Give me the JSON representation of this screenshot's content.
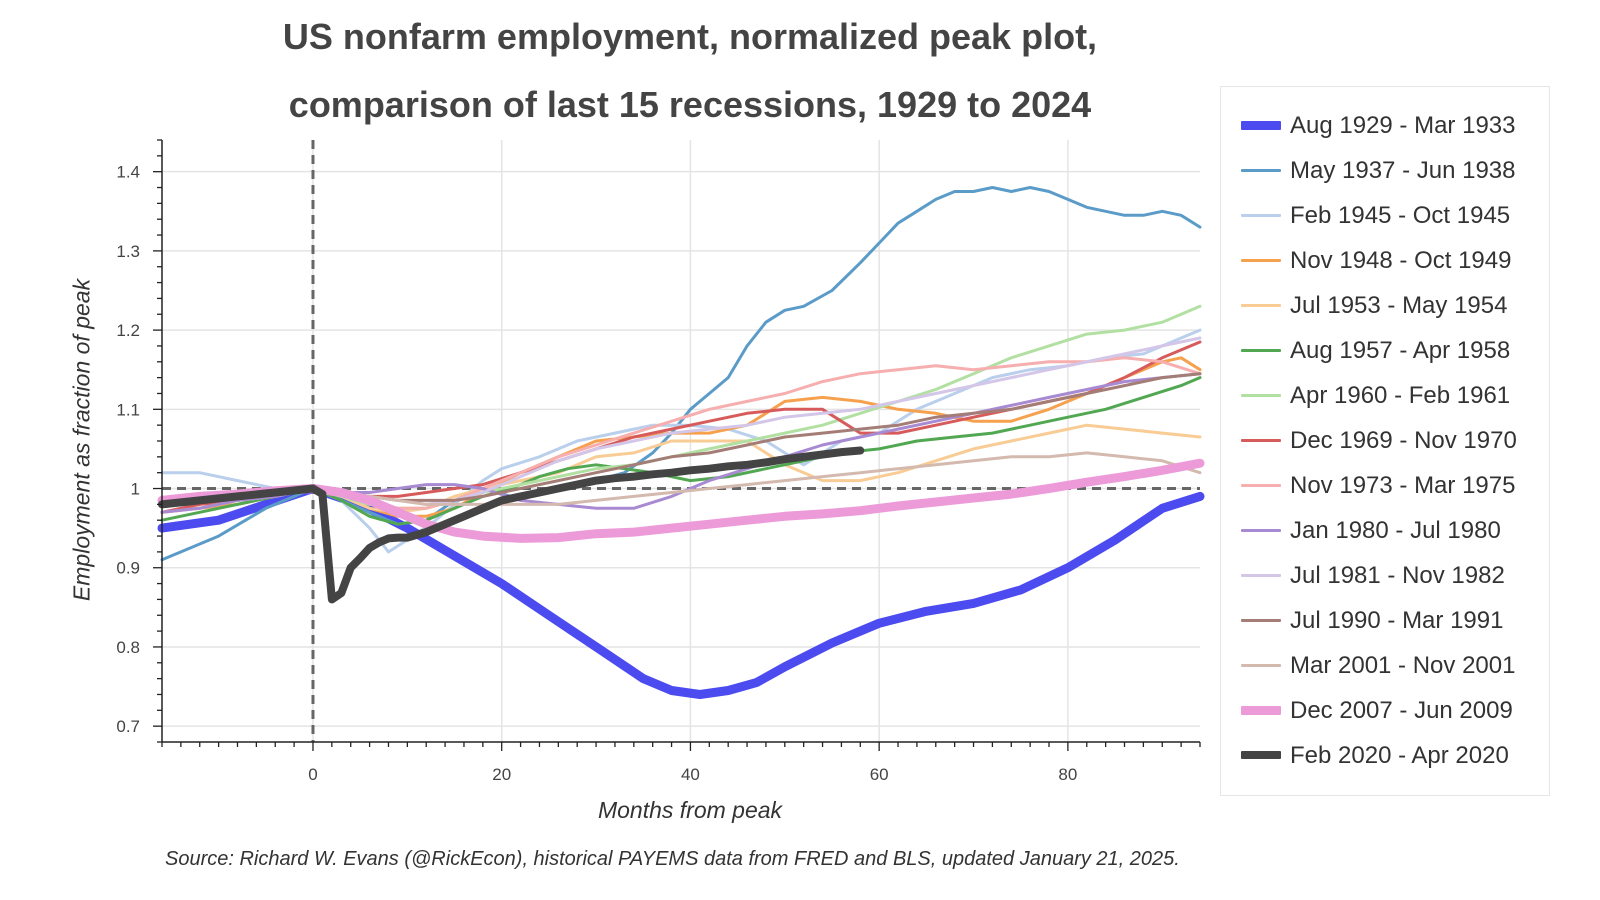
{
  "title_line1": "US nonfarm employment, normalized peak plot,",
  "title_line2": "comparison of last 15 recessions, 1929 to 2024",
  "source": "Source: Richard W. Evans (@RickEcon), historical PAYEMS data from FRED and BLS, updated January 21, 2025.",
  "chart_data": {
    "type": "line",
    "xlabel": "Months from peak",
    "ylabel": "Employment as fraction of peak",
    "xlim": [
      -16,
      94
    ],
    "ylim": [
      0.68,
      1.44
    ],
    "x_ticks": [
      0,
      20,
      40,
      60,
      80
    ],
    "y_ticks": [
      0.7,
      0.8,
      0.9,
      1.0,
      1.1,
      1.2,
      1.3,
      1.4
    ],
    "y_tick_labels": [
      "0.7",
      "0.8",
      "0.9",
      "1",
      "1.1",
      "1.2",
      "1.3",
      "1.4"
    ],
    "grid": true,
    "reference_lines": {
      "vertical_x": 0,
      "horizontal_y": 1.0
    },
    "legend_position": "right",
    "series": [
      {
        "name": "Aug 1929 - Mar 1933",
        "color": "#4b4bf0",
        "width": 9,
        "opacity": 1,
        "x": [
          -16,
          -10,
          -5,
          0,
          5,
          10,
          15,
          20,
          25,
          30,
          35,
          38,
          41,
          44,
          47,
          50,
          55,
          60,
          65,
          70,
          75,
          80,
          85,
          90,
          94
        ],
        "y": [
          0.95,
          0.96,
          0.98,
          1.0,
          0.98,
          0.95,
          0.915,
          0.88,
          0.84,
          0.8,
          0.76,
          0.745,
          0.74,
          0.745,
          0.755,
          0.775,
          0.805,
          0.83,
          0.845,
          0.855,
          0.872,
          0.9,
          0.935,
          0.975,
          0.99
        ]
      },
      {
        "name": "May 1937 - Jun 1938",
        "color": "#5b9bc8",
        "width": 3,
        "opacity": 1,
        "x": [
          -16,
          -10,
          -5,
          0,
          3,
          6,
          9,
          12,
          15,
          18,
          21,
          24,
          27,
          30,
          33,
          36,
          38,
          40,
          42,
          44,
          46,
          48,
          50,
          52,
          55,
          58,
          60,
          62,
          64,
          66,
          68,
          70,
          72,
          74,
          76,
          78,
          80,
          82,
          84,
          86,
          88,
          90,
          92,
          94
        ],
        "y": [
          0.91,
          0.94,
          0.975,
          1.0,
          0.985,
          0.97,
          0.955,
          0.96,
          0.985,
          1.0,
          0.99,
          0.995,
          1.0,
          1.01,
          1.02,
          1.045,
          1.07,
          1.1,
          1.12,
          1.14,
          1.18,
          1.21,
          1.225,
          1.23,
          1.25,
          1.285,
          1.31,
          1.335,
          1.35,
          1.365,
          1.375,
          1.375,
          1.38,
          1.375,
          1.38,
          1.375,
          1.365,
          1.355,
          1.35,
          1.345,
          1.345,
          1.35,
          1.345,
          1.33
        ]
      },
      {
        "name": "Feb 1945 - Oct 1945",
        "color": "#b9cfec",
        "width": 3,
        "opacity": 1,
        "x": [
          -16,
          -12,
          -8,
          -4,
          0,
          3,
          6,
          8,
          10,
          13,
          16,
          18,
          20,
          24,
          28,
          32,
          36,
          40,
          44,
          48,
          52,
          56,
          60,
          64,
          68,
          72,
          76,
          80,
          84,
          88,
          92,
          94
        ],
        "y": [
          1.02,
          1.02,
          1.01,
          1.0,
          1.0,
          0.985,
          0.95,
          0.92,
          0.935,
          0.96,
          0.99,
          1.01,
          1.025,
          1.04,
          1.06,
          1.07,
          1.08,
          1.08,
          1.075,
          1.06,
          1.03,
          1.06,
          1.07,
          1.1,
          1.12,
          1.14,
          1.15,
          1.155,
          1.165,
          1.17,
          1.19,
          1.2
        ]
      },
      {
        "name": "Nov 1948 - Oct 1949",
        "color": "#f5a14e",
        "width": 3,
        "opacity": 1,
        "x": [
          -16,
          -12,
          -8,
          -4,
          0,
          3,
          6,
          9,
          12,
          15,
          18,
          22,
          26,
          30,
          34,
          38,
          42,
          46,
          50,
          54,
          58,
          62,
          66,
          70,
          74,
          78,
          82,
          86,
          90,
          92,
          94
        ],
        "y": [
          0.97,
          0.975,
          0.98,
          0.99,
          1.0,
          0.99,
          0.975,
          0.965,
          0.965,
          0.975,
          0.995,
          1.02,
          1.04,
          1.06,
          1.065,
          1.07,
          1.07,
          1.08,
          1.11,
          1.115,
          1.11,
          1.1,
          1.095,
          1.085,
          1.085,
          1.1,
          1.12,
          1.14,
          1.16,
          1.165,
          1.15
        ]
      },
      {
        "name": "Jul 1953 - May 1954",
        "color": "#f8cc94",
        "width": 3,
        "opacity": 1,
        "x": [
          -16,
          -12,
          -8,
          -4,
          0,
          3,
          6,
          9,
          12,
          15,
          18,
          22,
          26,
          30,
          34,
          38,
          42,
          46,
          50,
          54,
          58,
          62,
          66,
          70,
          74,
          78,
          82,
          86,
          90,
          94
        ],
        "y": [
          0.97,
          0.975,
          0.985,
          0.99,
          1.0,
          0.99,
          0.975,
          0.97,
          0.975,
          0.99,
          1.0,
          1.01,
          1.02,
          1.04,
          1.045,
          1.06,
          1.06,
          1.06,
          1.03,
          1.01,
          1.01,
          1.02,
          1.035,
          1.05,
          1.06,
          1.07,
          1.08,
          1.075,
          1.07,
          1.065
        ]
      },
      {
        "name": "Aug 1957 - Apr 1958",
        "color": "#52a852",
        "width": 3,
        "opacity": 1,
        "x": [
          -16,
          -12,
          -8,
          -4,
          0,
          3,
          6,
          9,
          12,
          15,
          18,
          21,
          24,
          27,
          30,
          33,
          36,
          40,
          44,
          48,
          52,
          56,
          60,
          64,
          68,
          72,
          76,
          80,
          84,
          88,
          92,
          94
        ],
        "y": [
          0.96,
          0.97,
          0.98,
          0.99,
          1.0,
          0.985,
          0.965,
          0.955,
          0.96,
          0.975,
          0.99,
          1.0,
          1.015,
          1.025,
          1.03,
          1.025,
          1.02,
          1.01,
          1.015,
          1.025,
          1.035,
          1.045,
          1.05,
          1.06,
          1.065,
          1.07,
          1.08,
          1.09,
          1.1,
          1.115,
          1.13,
          1.14
        ]
      },
      {
        "name": "Apr 1960 - Feb 1961",
        "color": "#b2e0a2",
        "width": 3,
        "opacity": 1,
        "x": [
          -16,
          -12,
          -8,
          -4,
          0,
          3,
          6,
          9,
          12,
          15,
          18,
          22,
          26,
          30,
          34,
          38,
          42,
          46,
          50,
          54,
          58,
          62,
          66,
          70,
          74,
          78,
          82,
          86,
          90,
          94
        ],
        "y": [
          0.97,
          0.975,
          0.985,
          0.99,
          1.0,
          0.99,
          0.98,
          0.975,
          0.975,
          0.985,
          0.995,
          1.005,
          1.015,
          1.025,
          1.03,
          1.04,
          1.05,
          1.06,
          1.07,
          1.08,
          1.095,
          1.11,
          1.125,
          1.145,
          1.165,
          1.18,
          1.195,
          1.2,
          1.21,
          1.23
        ]
      },
      {
        "name": "Dec 1969 - Nov 1970",
        "color": "#d75b5b",
        "width": 3,
        "opacity": 1,
        "x": [
          -16,
          -12,
          -8,
          -4,
          0,
          3,
          6,
          9,
          12,
          15,
          18,
          22,
          26,
          30,
          34,
          38,
          42,
          46,
          50,
          54,
          58,
          62,
          66,
          70,
          74,
          78,
          82,
          86,
          90,
          94
        ],
        "y": [
          0.97,
          0.98,
          0.985,
          0.995,
          1.0,
          0.995,
          0.99,
          0.99,
          0.995,
          1.0,
          1.005,
          1.02,
          1.035,
          1.05,
          1.065,
          1.075,
          1.085,
          1.095,
          1.1,
          1.1,
          1.07,
          1.07,
          1.08,
          1.09,
          1.1,
          1.11,
          1.12,
          1.14,
          1.165,
          1.185
        ]
      },
      {
        "name": "Nov 1973 - Mar 1975",
        "color": "#f6aeae",
        "width": 3,
        "opacity": 1,
        "x": [
          -16,
          -12,
          -8,
          -4,
          0,
          3,
          6,
          9,
          12,
          15,
          18,
          22,
          26,
          30,
          34,
          38,
          42,
          46,
          50,
          54,
          58,
          62,
          66,
          70,
          74,
          78,
          82,
          86,
          90,
          94
        ],
        "y": [
          0.97,
          0.975,
          0.985,
          0.99,
          1.0,
          0.995,
          0.985,
          0.975,
          0.975,
          0.985,
          1.0,
          1.02,
          1.04,
          1.055,
          1.07,
          1.085,
          1.1,
          1.11,
          1.12,
          1.135,
          1.145,
          1.15,
          1.155,
          1.15,
          1.155,
          1.16,
          1.16,
          1.165,
          1.16,
          1.145
        ]
      },
      {
        "name": "Jan 1980 - Jul 1980",
        "color": "#a88ad2",
        "width": 3,
        "opacity": 1,
        "x": [
          -16,
          -12,
          -8,
          -4,
          0,
          3,
          6,
          9,
          12,
          15,
          18,
          22,
          26,
          30,
          34,
          38,
          42,
          46,
          50,
          54,
          58,
          62,
          66,
          70,
          74,
          78,
          82,
          86,
          90,
          94
        ],
        "y": [
          0.97,
          0.975,
          0.985,
          0.99,
          1.0,
          0.995,
          0.995,
          1.0,
          1.005,
          1.005,
          1.0,
          0.985,
          0.98,
          0.975,
          0.975,
          0.99,
          1.01,
          1.025,
          1.04,
          1.055,
          1.065,
          1.075,
          1.085,
          1.095,
          1.105,
          1.115,
          1.125,
          1.135,
          1.14,
          1.145
        ]
      },
      {
        "name": "Jul 1981 - Nov 1982",
        "color": "#d3c6e8",
        "width": 3,
        "opacity": 1,
        "x": [
          -16,
          -12,
          -8,
          -4,
          0,
          3,
          6,
          9,
          12,
          15,
          18,
          22,
          26,
          30,
          34,
          38,
          42,
          46,
          50,
          54,
          58,
          62,
          66,
          70,
          74,
          78,
          82,
          86,
          90,
          94
        ],
        "y": [
          0.98,
          0.985,
          0.99,
          0.995,
          1.0,
          0.995,
          0.99,
          0.985,
          0.98,
          0.985,
          0.995,
          1.015,
          1.035,
          1.05,
          1.06,
          1.07,
          1.075,
          1.08,
          1.09,
          1.095,
          1.1,
          1.11,
          1.12,
          1.13,
          1.14,
          1.15,
          1.16,
          1.17,
          1.18,
          1.19
        ]
      },
      {
        "name": "Jul 1990 - Mar 1991",
        "color": "#a47d76",
        "width": 3,
        "opacity": 1,
        "x": [
          -16,
          -12,
          -8,
          -4,
          0,
          3,
          6,
          9,
          12,
          15,
          18,
          22,
          26,
          30,
          34,
          38,
          42,
          46,
          50,
          54,
          58,
          62,
          66,
          70,
          74,
          78,
          82,
          86,
          90,
          94
        ],
        "y": [
          0.98,
          0.985,
          0.99,
          0.995,
          1.0,
          0.995,
          0.99,
          0.985,
          0.985,
          0.985,
          0.99,
          1.0,
          1.01,
          1.02,
          1.03,
          1.04,
          1.045,
          1.055,
          1.065,
          1.07,
          1.075,
          1.08,
          1.09,
          1.095,
          1.1,
          1.11,
          1.12,
          1.13,
          1.14,
          1.145
        ]
      },
      {
        "name": "Mar 2001 - Nov 2001",
        "color": "#d4b9ae",
        "width": 3,
        "opacity": 1,
        "x": [
          -16,
          -12,
          -8,
          -4,
          0,
          3,
          6,
          9,
          12,
          15,
          18,
          22,
          26,
          30,
          34,
          38,
          42,
          46,
          50,
          54,
          58,
          62,
          66,
          70,
          74,
          78,
          82,
          86,
          90,
          94
        ],
        "y": [
          0.98,
          0.985,
          0.99,
          0.995,
          1.0,
          0.995,
          0.99,
          0.985,
          0.98,
          0.98,
          0.98,
          0.98,
          0.98,
          0.985,
          0.99,
          0.995,
          1.0,
          1.005,
          1.01,
          1.015,
          1.02,
          1.025,
          1.03,
          1.035,
          1.04,
          1.04,
          1.045,
          1.04,
          1.035,
          1.02
        ]
      },
      {
        "name": "Dec 2007 - Jun 2009",
        "color": "#ec9bd8",
        "width": 9,
        "opacity": 1,
        "x": [
          -16,
          -12,
          -8,
          -4,
          0,
          3,
          6,
          9,
          12,
          15,
          18,
          22,
          26,
          30,
          34,
          38,
          42,
          46,
          50,
          54,
          58,
          62,
          66,
          70,
          74,
          78,
          82,
          86,
          90,
          94
        ],
        "y": [
          0.985,
          0.99,
          0.993,
          0.997,
          1.0,
          0.995,
          0.985,
          0.97,
          0.955,
          0.945,
          0.94,
          0.937,
          0.938,
          0.943,
          0.945,
          0.95,
          0.955,
          0.96,
          0.965,
          0.968,
          0.972,
          0.978,
          0.983,
          0.988,
          0.993,
          1.0,
          1.008,
          1.015,
          1.023,
          1.032
        ]
      },
      {
        "name": "Feb 2020 - Apr 2020",
        "color": "#444444",
        "width": 8,
        "opacity": 1,
        "x": [
          -16,
          -12,
          -8,
          -4,
          0,
          1,
          2,
          3,
          4,
          5,
          6,
          7,
          8,
          9,
          10,
          12,
          14,
          16,
          18,
          20,
          22,
          24,
          26,
          28,
          30,
          32,
          34,
          36,
          38,
          40,
          42,
          44,
          46,
          48,
          50,
          52,
          54,
          56,
          58
        ],
        "y": [
          0.98,
          0.985,
          0.99,
          0.995,
          1.0,
          0.993,
          0.86,
          0.868,
          0.9,
          0.912,
          0.925,
          0.932,
          0.937,
          0.938,
          0.938,
          0.945,
          0.955,
          0.965,
          0.975,
          0.985,
          0.99,
          0.995,
          1.0,
          1.005,
          1.01,
          1.013,
          1.015,
          1.018,
          1.02,
          1.023,
          1.025,
          1.028,
          1.03,
          1.033,
          1.037,
          1.04,
          1.043,
          1.046,
          1.048
        ]
      }
    ]
  }
}
